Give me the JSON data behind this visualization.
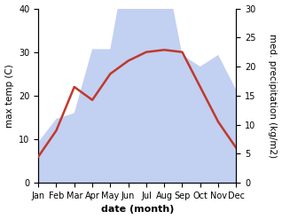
{
  "months": [
    "Jan",
    "Feb",
    "Mar",
    "Apr",
    "May",
    "Jun",
    "Jul",
    "Aug",
    "Sep",
    "Oct",
    "Nov",
    "Dec"
  ],
  "temp_max": [
    6.0,
    12.0,
    22.0,
    19.0,
    25.0,
    28.0,
    30.0,
    30.5,
    30.0,
    22.0,
    14.0,
    8.0
  ],
  "precipitation": [
    7,
    11,
    12,
    23,
    23,
    40,
    38,
    38,
    22,
    20,
    22,
    16
  ],
  "temp_color": "#c0392b",
  "precip_fill_color": "#b8c8f0",
  "precip_alpha": 0.85,
  "xlabel": "date (month)",
  "ylabel_left": "max temp (C)",
  "ylabel_right": "med. precipitation (kg/m2)",
  "ylim_left": [
    0,
    40
  ],
  "ylim_right": [
    0,
    30
  ],
  "yticks_left": [
    0,
    10,
    20,
    30,
    40
  ],
  "yticks_right": [
    0,
    5,
    10,
    15,
    20,
    25,
    30
  ],
  "bg_color": "#ffffff",
  "temp_linewidth": 1.8,
  "xlabel_fontsize": 8,
  "ylabel_fontsize": 7.5,
  "tick_fontsize": 7
}
